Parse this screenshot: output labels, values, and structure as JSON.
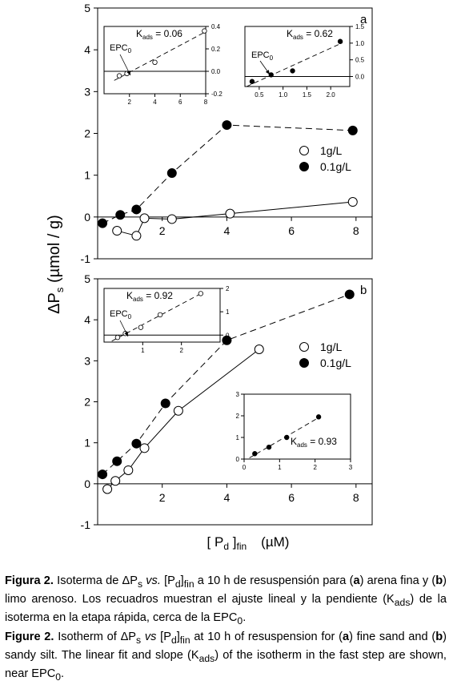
{
  "figure": {
    "ylabel": "ΔP",
    "ylabel_sub": "s",
    "ylabel_rest": " (µmol / g)",
    "xlabel_a": "[ P",
    "xlabel_sub_d": "d",
    "xlabel_b": " ]",
    "xlabel_sub_fin": "fin",
    "xlabel_unit": "(µM)"
  },
  "chart_data": [
    {
      "id": "a",
      "type": "line",
      "panel_label": "a",
      "xlim": [
        0,
        8.5
      ],
      "ylim": [
        -1,
        5
      ],
      "xticks": [
        "2",
        "4",
        "6",
        "8"
      ],
      "yticks": [
        "-1",
        "0",
        "1",
        "2",
        "3",
        "4",
        "5"
      ],
      "legend": "center-right",
      "series": [
        {
          "name": "1g/L",
          "marker": "open-circle",
          "line": "solid",
          "points": [
            [
              0.6,
              -0.33
            ],
            [
              1.2,
              -0.45
            ],
            [
              1.45,
              -0.03
            ],
            [
              2.3,
              -0.05
            ],
            [
              4.1,
              0.08
            ],
            [
              7.9,
              0.36
            ]
          ]
        },
        {
          "name": "0.1g/L",
          "marker": "filled-circle",
          "line": "dashed",
          "points": [
            [
              0.15,
              -0.15
            ],
            [
              0.7,
              0.05
            ],
            [
              1.2,
              0.18
            ],
            [
              2.3,
              1.05
            ],
            [
              4.0,
              2.2
            ],
            [
              7.9,
              2.07
            ]
          ]
        }
      ],
      "insets": [
        {
          "id": "a1",
          "kads": "0.06",
          "kads_prefix": "K",
          "kads_sub": "ads",
          "kads_suffix": " = 0.06",
          "epc": "EPC",
          "epc_sub": "0",
          "xlim": [
            0,
            8
          ],
          "ylim": [
            -0.2,
            0.4
          ],
          "xticks": [
            "2",
            "4",
            "6",
            "8"
          ],
          "yticks": [
            "-0.2",
            "0.0",
            "0.2",
            "0.4"
          ],
          "marker": "open-circle",
          "points": [
            [
              1.2,
              -0.04
            ],
            [
              1.8,
              -0.02
            ],
            [
              4.0,
              0.08
            ],
            [
              7.9,
              0.36
            ]
          ]
        },
        {
          "id": "a2",
          "kads": "0.62",
          "kads_prefix": "K",
          "kads_sub": "ads",
          "kads_suffix": " = 0.62",
          "epc": "EPC",
          "epc_sub": "0",
          "xlim": [
            0.2,
            2.4
          ],
          "ylim": [
            -0.3,
            1.5
          ],
          "xticks": [
            "0.5",
            "1.0",
            "1.5",
            "2.0"
          ],
          "yticks": [
            "0.0",
            "0.5",
            "1.0",
            "1.5"
          ],
          "marker": "filled-circle",
          "points": [
            [
              0.35,
              -0.15
            ],
            [
              0.75,
              0.05
            ],
            [
              1.2,
              0.17
            ],
            [
              2.2,
              1.05
            ]
          ]
        }
      ]
    },
    {
      "id": "b",
      "type": "line",
      "panel_label": "b",
      "xlim": [
        0,
        8.5
      ],
      "ylim": [
        -1,
        5
      ],
      "xticks": [
        "2",
        "4",
        "6",
        "8"
      ],
      "yticks": [
        "-1",
        "0",
        "1",
        "2",
        "3",
        "4",
        "5"
      ],
      "legend": "center-right",
      "series": [
        {
          "name": "1g/L",
          "marker": "open-circle",
          "line": "solid",
          "points": [
            [
              0.3,
              -0.13
            ],
            [
              0.55,
              0.07
            ],
            [
              0.95,
              0.33
            ],
            [
              1.45,
              0.87
            ],
            [
              2.5,
              1.78
            ],
            [
              5.0,
              3.28
            ]
          ]
        },
        {
          "name": "0.1g/L",
          "marker": "filled-circle",
          "line": "dashed",
          "points": [
            [
              0.15,
              0.23
            ],
            [
              0.6,
              0.55
            ],
            [
              1.2,
              0.98
            ],
            [
              2.1,
              1.96
            ],
            [
              4.0,
              3.5
            ],
            [
              7.8,
              4.62
            ]
          ]
        }
      ],
      "insets": [
        {
          "id": "b1",
          "kads": "0.92",
          "kads_prefix": "K",
          "kads_sub": "ads",
          "kads_suffix": " = 0.92",
          "epc": "EPC",
          "epc_sub": "0",
          "xlim": [
            0,
            3
          ],
          "ylim": [
            -0.3,
            2
          ],
          "xticks": [
            "1",
            "2"
          ],
          "yticks": [
            "0",
            "1",
            "2"
          ],
          "marker": "open-circle",
          "points": [
            [
              0.35,
              -0.1
            ],
            [
              0.55,
              0.07
            ],
            [
              0.95,
              0.33
            ],
            [
              1.45,
              0.87
            ],
            [
              2.5,
              1.78
            ]
          ]
        },
        {
          "id": "b2",
          "kads": "0.93",
          "kads_prefix": "K",
          "kads_sub": "ads",
          "kads_suffix": " = 0.93",
          "epc": "",
          "xlim": [
            0,
            3
          ],
          "ylim": [
            0,
            3
          ],
          "xticks": [
            "0",
            "1",
            "2",
            "3"
          ],
          "yticks": [
            "0",
            "1",
            "2",
            "3"
          ],
          "marker": "filled-circle",
          "points": [
            [
              0.3,
              0.25
            ],
            [
              0.7,
              0.55
            ],
            [
              1.2,
              1.0
            ],
            [
              2.1,
              1.95
            ]
          ]
        }
      ]
    }
  ],
  "caption": {
    "es_fig": "Figura 2.",
    "es_p1": " Isoterma de ",
    "es_dp": "ΔP",
    "es_s": "s",
    "es_vs": " vs.",
    "es_p2": " [P",
    "es_d": "d",
    "es_p3": "]",
    "es_fin": "fin",
    "es_p4": " a 10 h de resuspensión para (",
    "es_a": "a",
    "es_p5": ") arena fina y (",
    "es_b": "b",
    "es_p6": ") limo arenoso. Los recuadros muestran el ajuste lineal y la pendiente (K",
    "es_ads": "ads",
    "es_p7": ") de la isoterma en la etapa rápida, cerca de la EPC",
    "es_zero": "0",
    "es_end": ".",
    "en_fig": "Figure 2.",
    "en_p1": " Isotherm of ",
    "en_dp": "ΔP",
    "en_s": "s",
    "en_vs": " vs",
    "en_p2": " [P",
    "en_d": "d",
    "en_p3": "]",
    "en_fin": "fin",
    "en_p4": " at 10 h of resuspension for (",
    "en_a": "a",
    "en_p5": ") fine sand and (",
    "en_b": "b",
    "en_p6": ") sandy silt. The linear fit and slope (K",
    "en_ads": "ads",
    "en_p7": ") of the isotherm in the fast step are shown, near EPC",
    "en_zero": "0",
    "en_end": "."
  }
}
